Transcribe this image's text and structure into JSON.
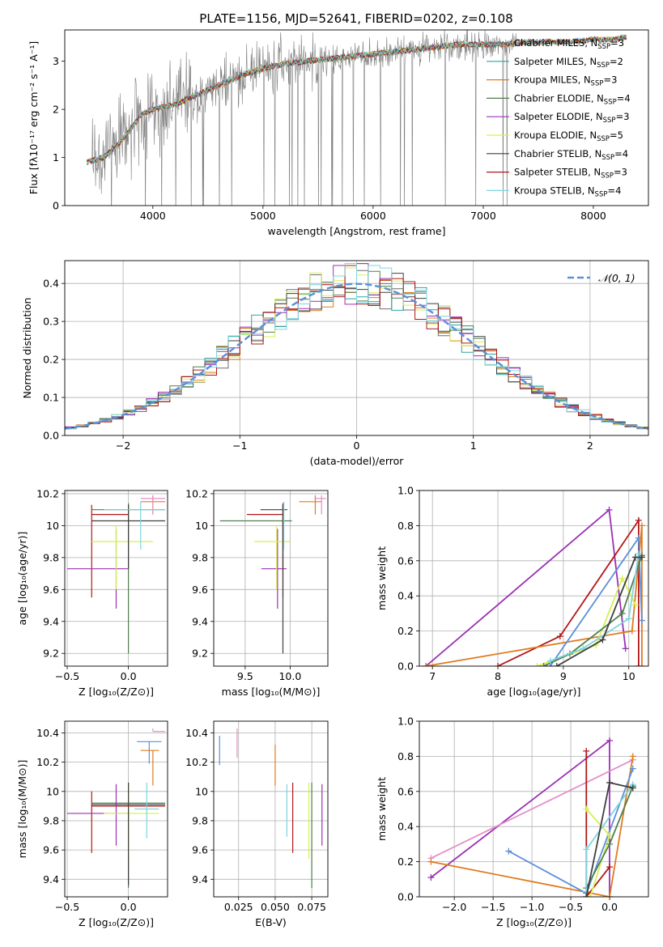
{
  "figure": {
    "title": "PLATE=1156, MJD=52641, FIBERID=0202, z=0.108"
  },
  "model_colors": {
    "Chabrier MILES": "#6f6f6f",
    "Salpeter MILES": "#2ca5a5",
    "Kroupa MILES": "#e07b1f",
    "Chabrier ELODIE": "#4f7f4f",
    "Salpeter ELODIE": "#9b30b5",
    "Kroupa ELODIE": "#d7ef55",
    "Chabrier STELIB": "#3f3f3f",
    "Salpeter STELIB": "#b01818",
    "Kroupa STELIB": "#7fd4e0",
    "extra_blue": "#5b8fd8",
    "extra_pink": "#e58fc8"
  },
  "chart_data": [
    {
      "id": "spectrum",
      "type": "line",
      "xlabel": "wavelength [Angstrom, rest frame]",
      "ylabel": "Flux [fλ10⁻¹⁷ erg cm⁻² s⁻¹ A⁻¹]",
      "xlim": [
        3200,
        8500
      ],
      "ylim": [
        0,
        3.65
      ],
      "xticks": [
        4000,
        5000,
        6000,
        7000,
        8000
      ],
      "yticks": [
        0,
        1,
        2,
        3
      ],
      "grid": false,
      "legend_position": "top-right",
      "legend": [
        {
          "label": "Chabrier MILES, N_SSP=3",
          "color": "#6f6f6f"
        },
        {
          "label": "Salpeter MILES, N_SSP=2",
          "color": "#2ca5a5"
        },
        {
          "label": "Kroupa MILES, N_SSP=3",
          "color": "#e07b1f"
        },
        {
          "label": "Chabrier ELODIE, N_SSP=4",
          "color": "#4f7f4f"
        },
        {
          "label": "Salpeter ELODIE, N_SSP=3",
          "color": "#9b30b5"
        },
        {
          "label": "Kroupa ELODIE, N_SSP=5",
          "color": "#d7ef55"
        },
        {
          "label": "Chabrier STELIB, N_SSP=4",
          "color": "#3f3f3f"
        },
        {
          "label": "Salpeter STELIB, N_SSP=3",
          "color": "#b01818"
        },
        {
          "label": "Kroupa STELIB, N_SSP=4",
          "color": "#7fd4e0"
        }
      ],
      "continuum": {
        "x": [
          3400,
          3550,
          3700,
          3800,
          3900,
          4000,
          4100,
          4200,
          4400,
          4600,
          4800,
          5000,
          5200,
          5400,
          5600,
          5800,
          6000,
          6200,
          6400,
          6600,
          6800,
          7000,
          7200,
          7400,
          7600,
          7800,
          8000,
          8200,
          8300
        ],
        "y": [
          0.9,
          1.0,
          1.3,
          1.6,
          1.9,
          2.0,
          2.05,
          2.1,
          2.3,
          2.5,
          2.7,
          2.85,
          2.95,
          3.0,
          3.05,
          3.1,
          3.15,
          3.2,
          3.25,
          3.3,
          3.35,
          3.35,
          3.35,
          3.4,
          3.4,
          3.4,
          3.45,
          3.45,
          3.5
        ]
      },
      "noise_region_x": [
        3450,
        7300
      ]
    },
    {
      "id": "residuals",
      "type": "line",
      "xlabel": "(data-model)/error",
      "ylabel": "Normed distribution",
      "xlim": [
        -2.5,
        2.5
      ],
      "ylim": [
        0,
        0.46
      ],
      "xticks": [
        -2,
        -1,
        0,
        1,
        2
      ],
      "xtick_labels": [
        "−2",
        "−1",
        "0",
        "1",
        "2"
      ],
      "yticks": [
        0.0,
        0.1,
        0.2,
        0.3,
        0.4
      ],
      "grid": true,
      "legend_position": "top-right",
      "legend": [
        {
          "label": "𝒩(0, 1)",
          "color": "#5b8fd8",
          "style": "dashed"
        }
      ],
      "gaussian": {
        "mean": 0,
        "sigma": 1
      },
      "bin_width": 0.1
    },
    {
      "id": "age_vs_Z",
      "type": "scatter",
      "xlabel": "Z [log₁₀(Z/Z⊙)]",
      "ylabel": "age  [log₁₀(age/yr)]",
      "xlim": [
        -0.52,
        0.32
      ],
      "ylim": [
        9.12,
        10.22
      ],
      "xticks": [
        -0.5,
        0.0
      ],
      "xtick_labels": [
        "−0.5",
        "0.0"
      ],
      "yticks": [
        9.2,
        9.4,
        9.6,
        9.8,
        10.0,
        10.2
      ],
      "grid": true,
      "points": [
        {
          "x": -0.3,
          "y": 10.07,
          "xerr": [
            0.0,
            0.3
          ],
          "yerr": [
            0.52,
            0.06
          ],
          "color": "#b01818"
        },
        {
          "x": 0.0,
          "y": 10.1,
          "xerr": [
            0.3,
            0.3
          ],
          "yerr": [
            0.9,
            0.04
          ],
          "color": "#4f7f4f"
        },
        {
          "x": 0.2,
          "y": 10.15,
          "xerr": [
            0.1,
            0.1
          ],
          "yerr": [
            0.08,
            0.04
          ],
          "color": "#e07b1f"
        },
        {
          "x": 0.2,
          "y": 10.17,
          "xerr": [
            0.1,
            0.1
          ],
          "yerr": [
            0.1,
            0.02
          ],
          "color": "#e58fc8"
        },
        {
          "x": -0.1,
          "y": 9.73,
          "xerr": [
            0.4,
            0.1
          ],
          "yerr": [
            0.25,
            0.25
          ],
          "color": "#9b30b5"
        },
        {
          "x": -0.1,
          "y": 9.9,
          "xerr": [
            0.2,
            0.3
          ],
          "yerr": [
            0.3,
            0.1
          ],
          "color": "#d7ef55"
        },
        {
          "x": 0.0,
          "y": 10.03,
          "xerr": [
            0.3,
            0.3
          ],
          "yerr": [
            0.3,
            0.1
          ],
          "color": "#3f3f3f"
        },
        {
          "x": 0.1,
          "y": 10.1,
          "xerr": [
            0.3,
            0.2
          ],
          "yerr": [
            0.25,
            0.05
          ],
          "color": "#7fd4e0"
        }
      ]
    },
    {
      "id": "age_vs_mass",
      "type": "scatter",
      "xlabel": "mass [log₁₀(M/M⊙)]",
      "ylabel": "",
      "xlim": [
        9.15,
        10.42
      ],
      "ylim": [
        9.12,
        10.22
      ],
      "xticks": [
        9.5,
        10.0
      ],
      "xtick_labels": [
        "9.5",
        "10.0"
      ],
      "yticks": [
        9.2,
        9.4,
        9.6,
        9.8,
        10.0,
        10.2
      ],
      "grid": true,
      "points": [
        {
          "x": 9.92,
          "y": 10.07,
          "xerr": [
            0.4,
            0.0
          ],
          "yerr": [
            0.52,
            0.06
          ],
          "color": "#b01818"
        },
        {
          "x": 9.92,
          "y": 10.03,
          "xerr": [
            0.7,
            0.1
          ],
          "yerr": [
            0.3,
            0.1
          ],
          "color": "#4f7f4f"
        },
        {
          "x": 10.28,
          "y": 10.15,
          "xerr": [
            0.18,
            0.07
          ],
          "yerr": [
            0.08,
            0.04
          ],
          "color": "#e07b1f"
        },
        {
          "x": 10.35,
          "y": 10.17,
          "xerr": [
            0.08,
            0.05
          ],
          "yerr": [
            0.1,
            0.02
          ],
          "color": "#e58fc8"
        },
        {
          "x": 9.86,
          "y": 9.73,
          "xerr": [
            0.18,
            0.1
          ],
          "yerr": [
            0.25,
            0.25
          ],
          "color": "#9b30b5"
        },
        {
          "x": 9.85,
          "y": 9.9,
          "xerr": [
            0.25,
            0.15
          ],
          "yerr": [
            0.3,
            0.1
          ],
          "color": "#d7ef55"
        },
        {
          "x": 9.92,
          "y": 10.1,
          "xerr": [
            0.25,
            0.05
          ],
          "yerr": [
            0.9,
            0.04
          ],
          "color": "#3f3f3f"
        },
        {
          "x": 9.93,
          "y": 10.1,
          "xerr": [
            0.0,
            0.0
          ],
          "yerr": [
            0.25,
            0.05
          ],
          "color": "#7fd4e0"
        }
      ]
    },
    {
      "id": "weight_vs_age",
      "type": "line",
      "xlabel": "age  [log₁₀(age/yr)]",
      "ylabel": "mass weight",
      "xlim": [
        6.8,
        10.3
      ],
      "ylim": [
        0,
        1
      ],
      "xticks": [
        7,
        8,
        9,
        10
      ],
      "yticks": [
        0.0,
        0.2,
        0.4,
        0.6,
        0.8,
        1.0
      ],
      "grid": true,
      "series": [
        {
          "color": "#9b30b5",
          "x": [
            6.9,
            9.7,
            9.95
          ],
          "y": [
            0.0,
            0.89,
            0.1
          ]
        },
        {
          "color": "#b01818",
          "x": [
            8.0,
            8.95,
            10.15,
            10.15
          ],
          "y": [
            0.0,
            0.17,
            0.83,
            0.0
          ]
        },
        {
          "color": "#e07b1f",
          "x": [
            6.9,
            10.05,
            10.2,
            10.2
          ],
          "y": [
            0.0,
            0.2,
            0.8,
            0.0
          ]
        },
        {
          "color": "#5b8fd8",
          "x": [
            8.8,
            10.15,
            10.2
          ],
          "y": [
            0.0,
            0.73,
            0.26
          ]
        },
        {
          "color": "#d7ef55",
          "x": [
            8.6,
            9.5,
            9.9,
            10.1
          ],
          "y": [
            0.0,
            0.12,
            0.5,
            0.35
          ]
        },
        {
          "color": "#4f7f4f",
          "x": [
            8.7,
            9.1,
            9.9,
            10.2
          ],
          "y": [
            0.0,
            0.07,
            0.3,
            0.63
          ]
        },
        {
          "color": "#7fd4e0",
          "x": [
            8.8,
            9.3,
            10.0,
            10.15
          ],
          "y": [
            0.03,
            0.1,
            0.27,
            0.64
          ]
        },
        {
          "color": "#3f3f3f",
          "x": [
            8.9,
            9.6,
            10.1,
            10.2
          ],
          "y": [
            0.0,
            0.15,
            0.62,
            0.62
          ]
        }
      ]
    },
    {
      "id": "mass_vs_Z",
      "type": "scatter",
      "xlabel": "Z [log₁₀(Z/Z⊙)]",
      "ylabel": "mass [log₁₀(M/M⊙)]",
      "xlim": [
        -0.52,
        0.32
      ],
      "ylim": [
        9.28,
        10.48
      ],
      "xticks": [
        -0.5,
        0.0
      ],
      "xtick_labels": [
        "−0.5",
        "0.0"
      ],
      "yticks": [
        9.4,
        9.6,
        9.8,
        10.0,
        10.2,
        10.4
      ],
      "grid": true,
      "points": [
        {
          "x": 0.2,
          "y": 10.41,
          "xerr": [
            0.0,
            0.1
          ],
          "yerr": [
            0.0,
            0.02
          ],
          "color": "#e58fc8"
        },
        {
          "x": 0.17,
          "y": 10.34,
          "xerr": [
            0.1,
            0.1
          ],
          "yerr": [
            0.15,
            0.0
          ],
          "color": "#5b8fd8"
        },
        {
          "x": 0.2,
          "y": 10.28,
          "xerr": [
            0.1,
            0.05
          ],
          "yerr": [
            0.24,
            0.0
          ],
          "color": "#e07b1f"
        },
        {
          "x": -0.3,
          "y": 9.9,
          "xerr": [
            0.0,
            0.6
          ],
          "yerr": [
            0.32,
            0.1
          ],
          "color": "#b01818"
        },
        {
          "x": 0.0,
          "y": 9.92,
          "xerr": [
            0.3,
            0.3
          ],
          "yerr": [
            0.58,
            0.14
          ],
          "color": "#4f7f4f"
        },
        {
          "x": -0.1,
          "y": 9.85,
          "xerr": [
            0.4,
            0.1
          ],
          "yerr": [
            0.22,
            0.2
          ],
          "color": "#9b30b5"
        },
        {
          "x": 0.0,
          "y": 9.85,
          "xerr": [
            0.2,
            0.25
          ],
          "yerr": [
            0.3,
            0.2
          ],
          "color": "#d7ef55"
        },
        {
          "x": 0.0,
          "y": 9.91,
          "xerr": [
            0.3,
            0.3
          ],
          "yerr": [
            0.55,
            0.15
          ],
          "color": "#3f3f3f"
        },
        {
          "x": 0.15,
          "y": 9.88,
          "xerr": [
            0.1,
            0.1
          ],
          "yerr": [
            0.2,
            0.18
          ],
          "color": "#7fd4e0"
        }
      ]
    },
    {
      "id": "mass_vs_ebv",
      "type": "scatter",
      "xlabel": "E(B-V)",
      "ylabel": "",
      "xlim": [
        0.008,
        0.086
      ],
      "ylim": [
        9.28,
        10.48
      ],
      "xticks": [
        0.025,
        0.05,
        0.075
      ],
      "xtick_labels": [
        "0.025",
        "0.050",
        "0.075"
      ],
      "yticks": [
        9.4,
        9.6,
        9.8,
        10.0,
        10.2,
        10.4
      ],
      "grid": true,
      "points": [
        {
          "x": 0.012,
          "y": 10.28,
          "yerr": [
            0.1,
            0.1
          ],
          "color": "#5b8fd8"
        },
        {
          "x": 0.024,
          "y": 10.33,
          "yerr": [
            0.1,
            0.1
          ],
          "color": "#e58fc8"
        },
        {
          "x": 0.05,
          "y": 10.18,
          "yerr": [
            0.14,
            0.14
          ],
          "color": "#e07b1f"
        },
        {
          "x": 0.058,
          "y": 9.87,
          "yerr": [
            0.18,
            0.18
          ],
          "color": "#7fd4e0"
        },
        {
          "x": 0.062,
          "y": 9.82,
          "yerr": [
            0.24,
            0.24
          ],
          "color": "#b01818"
        },
        {
          "x": 0.073,
          "y": 9.8,
          "yerr": [
            0.26,
            0.26
          ],
          "color": "#d7ef55"
        },
        {
          "x": 0.075,
          "y": 9.7,
          "yerr": [
            0.36,
            0.36
          ],
          "color": "#4f7f4f"
        },
        {
          "x": 0.082,
          "y": 9.84,
          "yerr": [
            0.21,
            0.21
          ],
          "color": "#9b30b5"
        }
      ]
    },
    {
      "id": "weight_vs_Z",
      "type": "line",
      "xlabel": "Z [log₁₀(Z/Z⊙)]",
      "ylabel": "mass weight",
      "xlim": [
        -2.45,
        0.5
      ],
      "ylim": [
        0,
        1
      ],
      "xticks": [
        -2.0,
        -1.5,
        -1.0,
        -0.5,
        0.0
      ],
      "xtick_labels": [
        "−2.0",
        "−1.5",
        "−1.0",
        "−0.5",
        "0.0"
      ],
      "yticks": [
        0.0,
        0.2,
        0.4,
        0.6,
        0.8,
        1.0
      ],
      "grid": true,
      "series": [
        {
          "color": "#9b30b5",
          "x": [
            -2.3,
            0.0,
            0.0
          ],
          "y": [
            0.11,
            0.89,
            0.0
          ]
        },
        {
          "color": "#e58fc8",
          "x": [
            -2.3,
            0.3
          ],
          "y": [
            0.22,
            0.78
          ]
        },
        {
          "color": "#e07b1f",
          "x": [
            -2.3,
            0.0,
            0.3
          ],
          "y": [
            0.2,
            0.0,
            0.8
          ]
        },
        {
          "color": "#5b8fd8",
          "x": [
            -1.3,
            -0.3,
            0.3
          ],
          "y": [
            0.26,
            0.02,
            0.73
          ]
        },
        {
          "color": "#b01818",
          "x": [
            -0.3,
            -0.3,
            0.0
          ],
          "y": [
            0.83,
            0.0,
            0.17
          ]
        },
        {
          "color": "#d7ef55",
          "x": [
            -0.25,
            0.0,
            -0.3
          ],
          "y": [
            0.0,
            0.35,
            0.5
          ]
        },
        {
          "color": "#4f7f4f",
          "x": [
            -0.3,
            0.0,
            0.3
          ],
          "y": [
            0.05,
            0.3,
            0.63
          ]
        },
        {
          "color": "#7fd4e0",
          "x": [
            -0.3,
            -0.3,
            0.3
          ],
          "y": [
            0.03,
            0.27,
            0.64
          ]
        },
        {
          "color": "#3f3f3f",
          "x": [
            -0.3,
            0.0,
            0.3
          ],
          "y": [
            0.0,
            0.65,
            0.62
          ]
        }
      ]
    }
  ]
}
